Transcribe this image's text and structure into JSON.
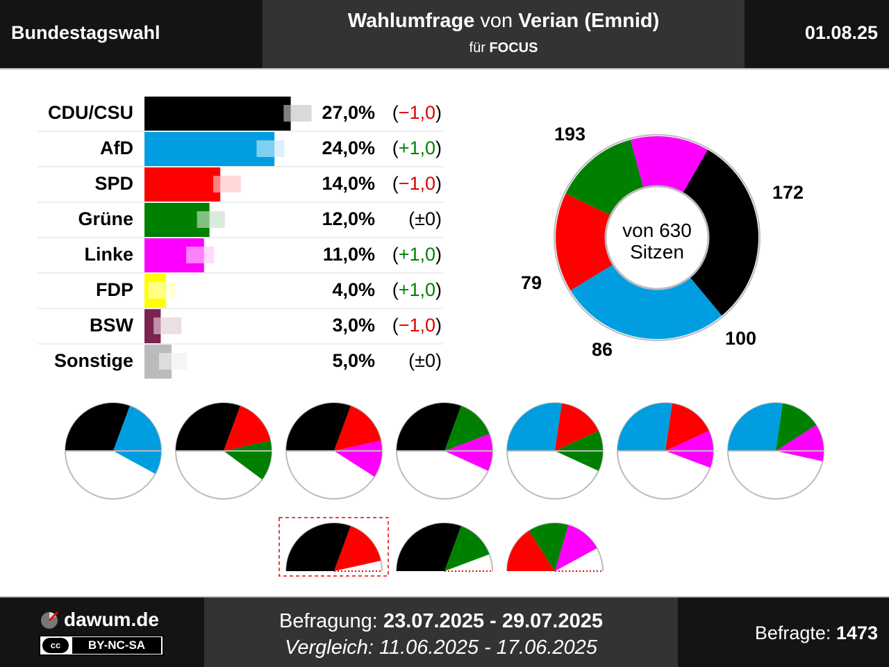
{
  "header": {
    "left": "Bundestagswahl",
    "title_b1": "Wahlumfrage",
    "title_r": " von ",
    "title_b2": "Verian (Emnid)",
    "sub_r": "für ",
    "sub_b": "FOCUS",
    "date": "01.08.25"
  },
  "chart_data": [
    {
      "type": "bar",
      "categories": [
        "CDU/CSU",
        "AfD",
        "SPD",
        "Grüne",
        "Linke",
        "FDP",
        "BSW",
        "Sonstige"
      ],
      "values": [
        27.0,
        24.0,
        14.0,
        12.0,
        11.0,
        4.0,
        3.0,
        5.0
      ],
      "previous_values": [
        28.0,
        23.0,
        15.0,
        12.0,
        10.0,
        3.0,
        4.0,
        5.0
      ],
      "value_labels": [
        "27,0%",
        "24,0%",
        "14,0%",
        "12,0%",
        "11,0%",
        "4,0%",
        "3,0%",
        "5,0%"
      ],
      "change_labels": [
        "(−1,0)",
        "(+1,0)",
        "(−1,0)",
        "(±0)",
        "(+1,0)",
        "(+1,0)",
        "(−1,0)",
        "(±0)"
      ],
      "change_colors": [
        "#e00000",
        "#008000",
        "#e00000",
        "#000000",
        "#008000",
        "#008000",
        "#e00000",
        "#000000"
      ],
      "colors": [
        "#000000",
        "#009ee0",
        "#ff0000",
        "#008000",
        "#ff00ff",
        "#ffff00",
        "#7b2450",
        "#bbbbbb"
      ]
    },
    {
      "type": "pie",
      "subtype": "donut",
      "labels": [
        "CDU/CSU",
        "AfD",
        "SPD",
        "Grüne",
        "Linke"
      ],
      "values": [
        193,
        172,
        100,
        86,
        79
      ],
      "value_labels": [
        "193",
        "172",
        "100",
        "86",
        "79"
      ],
      "colors": [
        "#000000",
        "#009ee0",
        "#ff0000",
        "#008000",
        "#ff00ff"
      ],
      "center_line1": "von 630",
      "center_line2": "Sitzen"
    },
    {
      "type": "pie",
      "subtype": "coalition-half-circles",
      "coalitions": [
        {
          "parties": [
            "CDU/CSU",
            "AfD"
          ],
          "seats": [
            193,
            172
          ]
        },
        {
          "parties": [
            "CDU/CSU",
            "SPD",
            "Grüne"
          ],
          "seats": [
            193,
            100,
            86
          ]
        },
        {
          "parties": [
            "CDU/CSU",
            "SPD",
            "Linke"
          ],
          "seats": [
            193,
            100,
            79
          ]
        },
        {
          "parties": [
            "CDU/CSU",
            "Grüne",
            "Linke"
          ],
          "seats": [
            193,
            86,
            79
          ]
        },
        {
          "parties": [
            "AfD",
            "SPD",
            "Grüne"
          ],
          "seats": [
            172,
            100,
            86
          ]
        },
        {
          "parties": [
            "AfD",
            "SPD",
            "Linke"
          ],
          "seats": [
            172,
            100,
            79
          ]
        },
        {
          "parties": [
            "AfD",
            "Grüne",
            "Linke"
          ],
          "seats": [
            172,
            86,
            79
          ]
        },
        {
          "parties": [
            "CDU/CSU",
            "SPD"
          ],
          "seats": [
            193,
            100
          ],
          "highlighted": true
        },
        {
          "parties": [
            "CDU/CSU",
            "Grüne"
          ],
          "seats": [
            193,
            86
          ]
        },
        {
          "parties": [
            "SPD",
            "Grüne",
            "Linke"
          ],
          "seats": [
            100,
            86,
            79
          ]
        }
      ]
    }
  ],
  "footer": {
    "brand": "dawum.de",
    "license": "BY-NC-SA",
    "survey_label": "Befragung: ",
    "survey_dates": "23.07.2025 - 29.07.2025",
    "compare_text": "Vergleich: 11.06.2025 - 17.06.2025",
    "respondents_label": "Befragte: ",
    "respondents_value": "1473"
  }
}
